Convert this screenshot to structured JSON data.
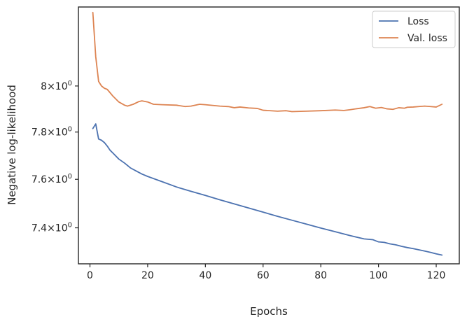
{
  "chart_data": {
    "type": "line",
    "xlabel": "Epochs",
    "ylabel": "Negative log-likelihood",
    "xlim": [
      -4,
      128
    ],
    "ylim": [
      7.255,
      8.355
    ],
    "yscale": "log",
    "xticks": [
      0,
      20,
      40,
      60,
      80,
      100,
      120
    ],
    "xtick_labels": [
      "0",
      "20",
      "40",
      "60",
      "80",
      "100",
      "120"
    ],
    "yticks": [
      7.4,
      7.6,
      7.8,
      8.0
    ],
    "ytick_labels": [
      {
        "mantissa": "7.4",
        "times": "×",
        "base": "10",
        "exp": "0"
      },
      {
        "mantissa": "7.6",
        "times": "×",
        "base": "10",
        "exp": "0"
      },
      {
        "mantissa": "7.8",
        "times": "×",
        "base": "10",
        "exp": "0"
      },
      {
        "mantissa": "8",
        "times": "×",
        "base": "10",
        "exp": "0"
      }
    ],
    "grid": false,
    "legend_position": "upper right",
    "series": [
      {
        "name": "Loss",
        "color": "#4c72b0",
        "points": [
          [
            1,
            7.815
          ],
          [
            2,
            7.835
          ],
          [
            3,
            7.77
          ],
          [
            4,
            7.765
          ],
          [
            5,
            7.755
          ],
          [
            6,
            7.74
          ],
          [
            7,
            7.722
          ],
          [
            8,
            7.71
          ],
          [
            10,
            7.685
          ],
          [
            12,
            7.668
          ],
          [
            14,
            7.648
          ],
          [
            16,
            7.635
          ],
          [
            18,
            7.622
          ],
          [
            20,
            7.612
          ],
          [
            25,
            7.59
          ],
          [
            30,
            7.568
          ],
          [
            35,
            7.55
          ],
          [
            40,
            7.533
          ],
          [
            45,
            7.515
          ],
          [
            50,
            7.498
          ],
          [
            55,
            7.481
          ],
          [
            60,
            7.464
          ],
          [
            65,
            7.447
          ],
          [
            70,
            7.431
          ],
          [
            75,
            7.415
          ],
          [
            80,
            7.399
          ],
          [
            85,
            7.384
          ],
          [
            90,
            7.369
          ],
          [
            95,
            7.355
          ],
          [
            98,
            7.352
          ],
          [
            100,
            7.343
          ],
          [
            102,
            7.341
          ],
          [
            104,
            7.335
          ],
          [
            106,
            7.331
          ],
          [
            108,
            7.325
          ],
          [
            110,
            7.32
          ],
          [
            112,
            7.316
          ],
          [
            114,
            7.311
          ],
          [
            116,
            7.306
          ],
          [
            118,
            7.301
          ],
          [
            120,
            7.295
          ],
          [
            122,
            7.29
          ]
        ]
      },
      {
        "name": "Val. loss",
        "color": "#dd8452",
        "points": [
          [
            1,
            8.33
          ],
          [
            2,
            8.13
          ],
          [
            3,
            8.02
          ],
          [
            4,
            8.0
          ],
          [
            5,
            7.99
          ],
          [
            6,
            7.985
          ],
          [
            7,
            7.97
          ],
          [
            8,
            7.955
          ],
          [
            10,
            7.93
          ],
          [
            12,
            7.916
          ],
          [
            13,
            7.912
          ],
          [
            15,
            7.92
          ],
          [
            17,
            7.932
          ],
          [
            18,
            7.935
          ],
          [
            20,
            7.93
          ],
          [
            22,
            7.92
          ],
          [
            25,
            7.918
          ],
          [
            30,
            7.916
          ],
          [
            33,
            7.91
          ],
          [
            35,
            7.912
          ],
          [
            38,
            7.92
          ],
          [
            40,
            7.918
          ],
          [
            45,
            7.912
          ],
          [
            48,
            7.91
          ],
          [
            50,
            7.905
          ],
          [
            52,
            7.908
          ],
          [
            55,
            7.904
          ],
          [
            58,
            7.902
          ],
          [
            60,
            7.894
          ],
          [
            65,
            7.89
          ],
          [
            68,
            7.892
          ],
          [
            70,
            7.888
          ],
          [
            75,
            7.89
          ],
          [
            80,
            7.892
          ],
          [
            85,
            7.895
          ],
          [
            88,
            7.893
          ],
          [
            90,
            7.896
          ],
          [
            92,
            7.9
          ],
          [
            95,
            7.905
          ],
          [
            97,
            7.91
          ],
          [
            99,
            7.903
          ],
          [
            101,
            7.906
          ],
          [
            103,
            7.9
          ],
          [
            105,
            7.898
          ],
          [
            107,
            7.905
          ],
          [
            109,
            7.903
          ],
          [
            110,
            7.907
          ],
          [
            112,
            7.908
          ],
          [
            114,
            7.91
          ],
          [
            116,
            7.912
          ],
          [
            118,
            7.91
          ],
          [
            120,
            7.908
          ],
          [
            122,
            7.92
          ]
        ]
      }
    ]
  }
}
